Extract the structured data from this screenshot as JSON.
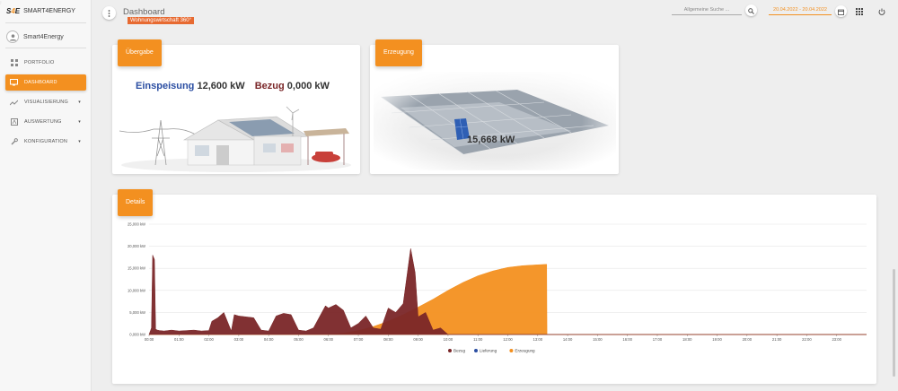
{
  "sidebar": {
    "brand": {
      "logo_s": "S",
      "logo_4": "4",
      "logo_e": "E",
      "name": "SMART4ENERGY"
    },
    "user": {
      "name": "Smart4Energy"
    },
    "items": [
      {
        "label": "PORTFOLIO",
        "icon": "grid-icon",
        "active": false
      },
      {
        "label": "DASHBOARD",
        "icon": "monitor-icon",
        "active": true
      },
      {
        "label": "VISUALISIERUNG",
        "icon": "trend-icon",
        "active": false,
        "caret": "▾"
      },
      {
        "label": "AUSWERTUNG",
        "icon": "report-icon",
        "active": false,
        "caret": "▾"
      },
      {
        "label": "KONFIGURATION",
        "icon": "wrench-icon",
        "active": false,
        "caret": "▾"
      }
    ]
  },
  "header": {
    "title": "Dashboard",
    "subtitle": "Wohnungswirtschaft 360°",
    "search_placeholder": "Allgemeine Suche ...",
    "daterange": "20.04.2022 - 20.04.2022"
  },
  "cards": {
    "uebergabe": {
      "title": "Übergabe",
      "einspeisung_label": "Einspeisung",
      "einspeisung_value": "12,600 kW",
      "bezug_label": "Bezug",
      "bezug_value": "0,000 kW"
    },
    "erzeugung": {
      "title": "Erzeugung",
      "value": "15,668 kW"
    },
    "details": {
      "title": "Details"
    }
  },
  "colors": {
    "accent": "#f39020",
    "bezug": "#7a2628",
    "lieferung": "#2b4ea2",
    "erzeugung": "#f39020"
  },
  "chart_data": {
    "type": "area",
    "title": "",
    "xlabel": "",
    "ylabel": "",
    "ylim": [
      0,
      25000
    ],
    "xlim": [
      0,
      24
    ],
    "y_ticks": [
      "0,000 kW",
      "5,000 kW",
      "10,000 kW",
      "15,000 kW",
      "20,000 kW",
      "25,000 kW"
    ],
    "x_ticks": [
      "00:00",
      "01:00",
      "02:00",
      "03:00",
      "04:00",
      "05:00",
      "06:00",
      "07:00",
      "08:00",
      "09:00",
      "10:00",
      "11:00",
      "12:00",
      "13:00",
      "14:00",
      "15:00",
      "16:00",
      "17:00",
      "18:00",
      "19:00",
      "20:00",
      "21:00",
      "22:00",
      "23:00"
    ],
    "legend_position": "bottom-center",
    "series": [
      {
        "name": "Bezug",
        "color": "#7a2628",
        "x": [
          0,
          0.08,
          0.12,
          0.18,
          0.22,
          0.28,
          0.35,
          0.5,
          0.75,
          1.0,
          1.25,
          1.5,
          1.75,
          2.0,
          2.1,
          2.3,
          2.5,
          2.75,
          2.85,
          3.0,
          3.25,
          3.5,
          3.75,
          4.0,
          4.25,
          4.5,
          4.75,
          5.0,
          5.25,
          5.5,
          5.9,
          6.0,
          6.25,
          6.5,
          6.75,
          7.0,
          7.25,
          7.5,
          7.75,
          8.0,
          8.25,
          8.5,
          8.75,
          8.9,
          9.0,
          9.25,
          9.5,
          9.75,
          10.0,
          24
        ],
        "y": [
          0,
          1500,
          18000,
          17000,
          1200,
          1000,
          900,
          800,
          1000,
          800,
          900,
          1000,
          800,
          900,
          3000,
          3800,
          5000,
          800,
          4500,
          4200,
          4000,
          3800,
          1000,
          800,
          4200,
          4800,
          4500,
          1000,
          800,
          1500,
          6500,
          6000,
          6800,
          5500,
          1500,
          2500,
          4200,
          1500,
          1200,
          6000,
          5000,
          7000,
          19500,
          14000,
          4000,
          5000,
          1000,
          1500,
          0,
          0
        ]
      },
      {
        "name": "Lieferung",
        "color": "#2b4ea2",
        "x": [
          0,
          24
        ],
        "y": [
          0,
          0
        ]
      },
      {
        "name": "Erzeugung",
        "color": "#f39020",
        "x": [
          0,
          6.0,
          6.5,
          7.0,
          7.5,
          8.0,
          8.5,
          9.0,
          9.5,
          10.0,
          10.5,
          11.0,
          11.5,
          12.0,
          12.5,
          13.0,
          13.3,
          13.31,
          24
        ],
        "y": [
          0,
          0,
          300,
          900,
          1800,
          3000,
          4500,
          6200,
          8000,
          10000,
          11800,
          13300,
          14400,
          15200,
          15600,
          15800,
          15900,
          0,
          0
        ]
      }
    ]
  }
}
